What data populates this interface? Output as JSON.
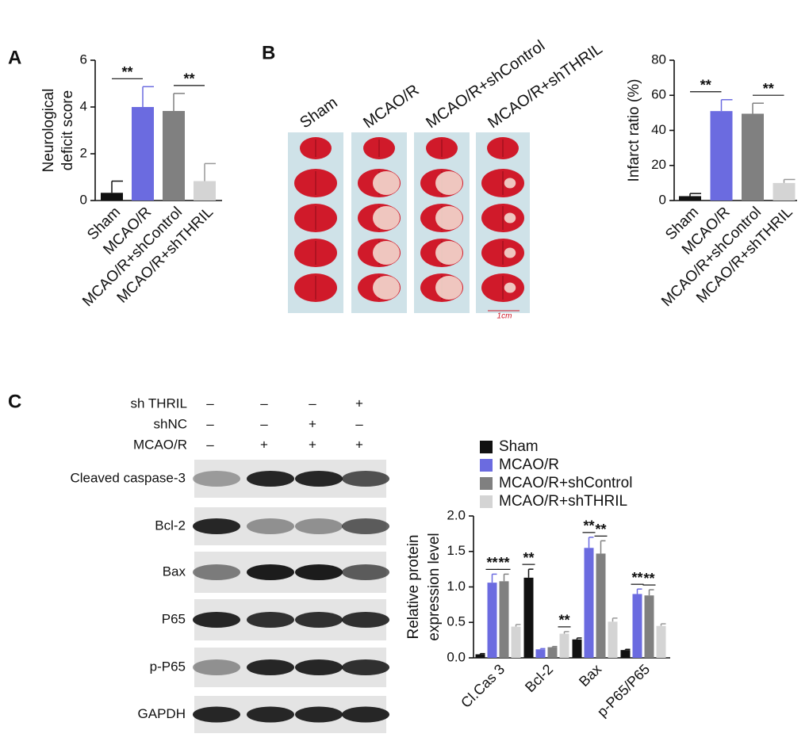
{
  "panel_labels": [
    "A",
    "B",
    "C"
  ],
  "brain_slices": {
    "columns": [
      "Sham",
      "MCAO/R",
      "MCAO/R+shControl",
      "MCAO/R+shTHRIL"
    ],
    "scale_label": "1cm"
  },
  "western_blot": {
    "conditions": [
      {
        "name": "sh THRIL",
        "marks": [
          "–",
          "–",
          "–",
          "+"
        ]
      },
      {
        "name": "shNC",
        "marks": [
          "–",
          "–",
          "+",
          "–"
        ]
      },
      {
        "name": "MCAO/R",
        "marks": [
          "–",
          "+",
          "+",
          "+"
        ]
      }
    ],
    "proteins": [
      "Cleaved caspase-3",
      "Bcl-2",
      "Bax",
      "P65",
      "p-P65",
      "GAPDH"
    ]
  },
  "chart_data": [
    {
      "type": "bar",
      "y_label": [
        "Neurological",
        "deficit score"
      ],
      "categories": [
        "Sham",
        "MCAO/R",
        "MCAO/R+shControl",
        "MCAO/R+shTHRIL"
      ],
      "values": [
        0.33,
        4.0,
        3.83,
        0.83
      ],
      "errors": [
        0.5,
        0.87,
        0.75,
        0.75
      ],
      "colors": [
        "#111111",
        "#6b6be0",
        "#808080",
        "#d4d4d4"
      ],
      "ylim": [
        0,
        6
      ],
      "yticks": [
        0,
        2,
        4,
        6
      ],
      "annotations": [
        {
          "label": "**",
          "from": 0,
          "to": 1
        },
        {
          "label": "**",
          "from": 2,
          "to": 3
        }
      ]
    },
    {
      "type": "bar",
      "y_label": [
        "Infarct ratio (%)"
      ],
      "categories": [
        "Sham",
        "MCAO/R",
        "MCAO/R+shControl",
        "MCAO/R+shTHRIL"
      ],
      "values": [
        2.5,
        51,
        49.5,
        10
      ],
      "errors": [
        1.5,
        6.5,
        6,
        2
      ],
      "colors": [
        "#111111",
        "#6b6be0",
        "#808080",
        "#d4d4d4"
      ],
      "ylim": [
        0,
        80
      ],
      "yticks": [
        0,
        20,
        40,
        60,
        80
      ],
      "annotations": [
        {
          "label": "**",
          "from": 0,
          "to": 1
        },
        {
          "label": "**",
          "from": 2,
          "to": 3
        }
      ]
    },
    {
      "type": "bar",
      "y_label": [
        "Relative protein",
        "expression level"
      ],
      "categories": [
        "Cl.Cas 3",
        "Bcl-2",
        "Bax",
        "p-P65/P65"
      ],
      "series": [
        {
          "name": "Sham",
          "color": "#111111",
          "values": [
            0.05,
            1.13,
            0.26,
            0.11
          ],
          "errors": [
            0.01,
            0.12,
            0.02,
            0.01
          ]
        },
        {
          "name": "MCAO/R",
          "color": "#6b6be0",
          "values": [
            1.06,
            0.12,
            1.55,
            0.9
          ],
          "errors": [
            0.12,
            0.01,
            0.15,
            0.07
          ]
        },
        {
          "name": "MCAO/R+shControl",
          "color": "#808080",
          "values": [
            1.08,
            0.15,
            1.47,
            0.88
          ],
          "errors": [
            0.1,
            0.01,
            0.18,
            0.08
          ]
        },
        {
          "name": "MCAO/R+shTHRIL",
          "color": "#d4d4d4",
          "values": [
            0.44,
            0.34,
            0.51,
            0.45
          ],
          "errors": [
            0.03,
            0.03,
            0.05,
            0.03
          ]
        }
      ],
      "ylim": [
        0,
        2
      ],
      "yticks": [
        {
          "value": 0,
          "label": "0.0"
        },
        0.5,
        {
          "value": 1,
          "label": "1.0"
        },
        1.5,
        {
          "value": 2,
          "label": "2.0"
        }
      ],
      "legend": "top-left",
      "annotations": [
        {
          "label": "**",
          "category": 0,
          "series": 1
        },
        {
          "label": "**",
          "category": 0,
          "series": 2
        },
        {
          "label": "**",
          "category": 1,
          "series": 0
        },
        {
          "label": "**",
          "category": 1,
          "series": 3
        },
        {
          "label": "**",
          "category": 2,
          "series": 1
        },
        {
          "label": "**",
          "category": 2,
          "series": 2
        },
        {
          "label": "**",
          "category": 3,
          "series": 1
        },
        {
          "label": "**",
          "category": 3,
          "series": 2
        }
      ]
    }
  ]
}
